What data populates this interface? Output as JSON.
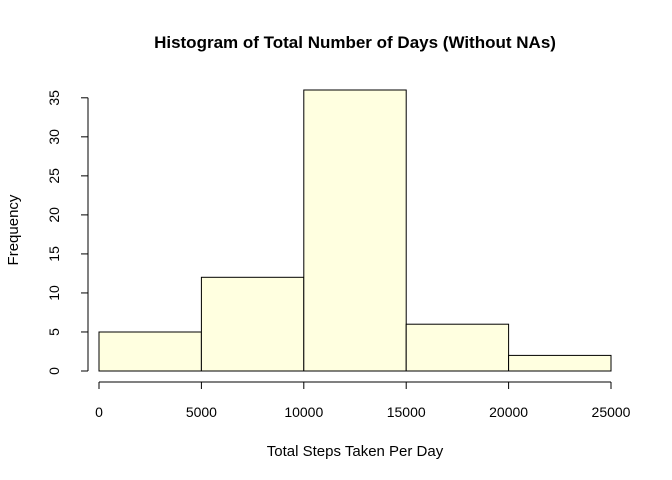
{
  "chart_data": {
    "type": "bar",
    "title": "Histogram of Total Number of Days (Without NAs)",
    "xlabel": "Total Steps Taken Per Day",
    "ylabel": "Frequency",
    "bins": [
      {
        "from": 0,
        "to": 5000,
        "count": 5
      },
      {
        "from": 5000,
        "to": 10000,
        "count": 12
      },
      {
        "from": 10000,
        "to": 15000,
        "count": 36
      },
      {
        "from": 15000,
        "to": 20000,
        "count": 6
      },
      {
        "from": 20000,
        "to": 25000,
        "count": 2
      }
    ],
    "xlim": [
      0,
      25000
    ],
    "ylim": [
      0,
      36
    ],
    "x_ticks": [
      0,
      5000,
      10000,
      15000,
      20000,
      25000
    ],
    "y_ticks": [
      0,
      5,
      10,
      15,
      20,
      25,
      30,
      35
    ],
    "bar_fill": "#ffffe0",
    "bar_stroke": "#000000",
    "grid": false,
    "legend": "none"
  }
}
